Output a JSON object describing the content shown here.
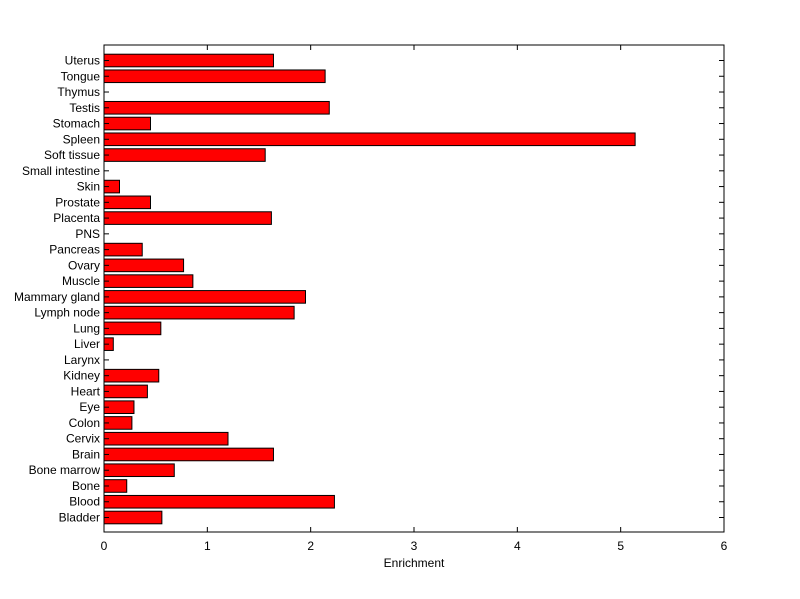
{
  "chart_data": {
    "type": "bar",
    "orientation": "horizontal",
    "title": "",
    "xlabel": "Enrichment",
    "ylabel": "",
    "xlim": [
      0,
      6
    ],
    "xticks": [
      0,
      1,
      2,
      3,
      4,
      5,
      6
    ],
    "grid": false,
    "bar_color": "#ff0000",
    "bar_edge_color": "#000000",
    "categories": [
      "Bladder",
      "Blood",
      "Bone",
      "Bone marrow",
      "Brain",
      "Cervix",
      "Colon",
      "Eye",
      "Heart",
      "Kidney",
      "Larynx",
      "Liver",
      "Lung",
      "Lymph node",
      "Mammary gland",
      "Muscle",
      "Ovary",
      "Pancreas",
      "PNS",
      "Placenta",
      "Prostate",
      "Skin",
      "Small intestine",
      "Soft tissue",
      "Spleen",
      "Stomach",
      "Testis",
      "Thymus",
      "Tongue",
      "Uterus"
    ],
    "values": [
      0.56,
      2.23,
      0.22,
      0.68,
      1.64,
      1.2,
      0.27,
      0.29,
      0.42,
      0.53,
      0,
      0.09,
      0.55,
      1.84,
      1.95,
      0.86,
      0.77,
      0.37,
      0,
      1.62,
      0.45,
      0.15,
      0,
      1.56,
      5.14,
      0.45,
      2.18,
      0,
      2.14,
      1.64
    ]
  }
}
